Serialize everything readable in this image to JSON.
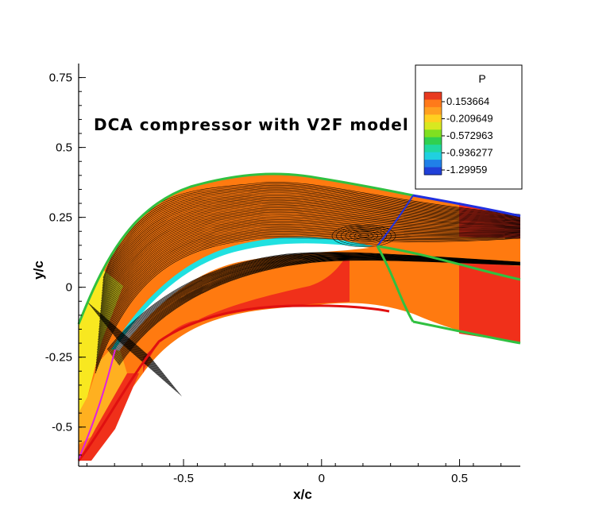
{
  "chart_data": {
    "type": "heatmap",
    "title": "DCA compressor with V2F model",
    "xlabel": "x/c",
    "ylabel": "y/c",
    "xlim": [
      -0.88,
      0.72
    ],
    "ylim": [
      -0.64,
      0.8
    ],
    "xticks": [
      -0.5,
      0,
      0.5
    ],
    "xtick_labels": [
      "-0.5",
      "0",
      "0.5"
    ],
    "yticks": [
      0.75,
      0.5,
      0.25,
      0,
      -0.25,
      -0.5
    ],
    "ytick_labels": [
      "0.75",
      "0.5",
      "0.25",
      "0",
      "-0.25",
      "-0.5"
    ],
    "legend": {
      "title": "P",
      "placement": "top-right",
      "levels": [
        {
          "label": "0.153664",
          "color": "#f05a28"
        },
        {
          "label": "-0.209649",
          "color": "#c8e020"
        },
        {
          "label": "-0.572963",
          "color": "#30d040"
        },
        {
          "label": "-0.936277",
          "color": "#30d0d0"
        },
        {
          "label": "-1.29959",
          "color": "#2040e0"
        }
      ],
      "swatches": [
        "#e83a20",
        "#ff7a1a",
        "#ffa020",
        "#ffd020",
        "#d8e820",
        "#80e020",
        "#30d050",
        "#20d8a0",
        "#20d0e0",
        "#2080e8",
        "#2040d8"
      ]
    },
    "colors": {
      "high_pressure": "#f0301a",
      "mid_high": "#ff7a10",
      "mid": "#ffb020",
      "low": "#f8f020",
      "boundary_green": "#30c040",
      "boundary_red": "#e01010",
      "boundary_blue": "#2030e0",
      "boundary_magenta": "#e020e0",
      "blade": "#ffffff",
      "blade_suction_edge": "#20e0e0"
    }
  }
}
